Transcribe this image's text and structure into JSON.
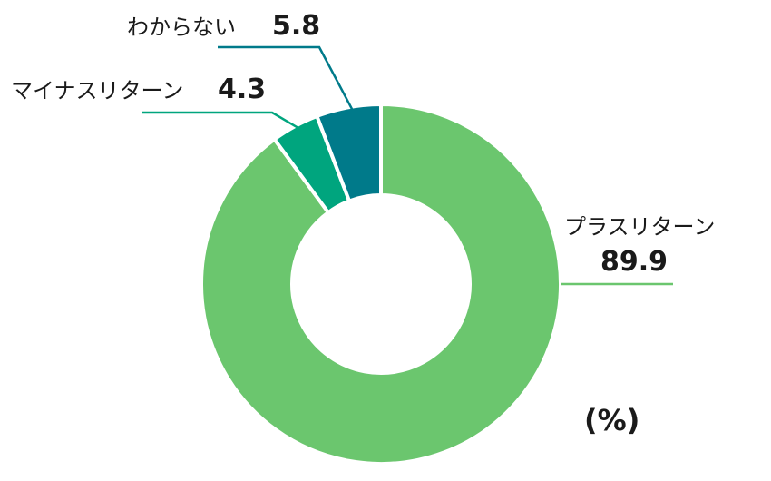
{
  "chart_data": {
    "type": "pie",
    "variant": "donut",
    "unit_label": "(%)",
    "slices": [
      {
        "label": "プラスリターン",
        "value": 89.9,
        "value_text": "89.9",
        "color": "#6BC66E"
      },
      {
        "label": "マイナスリターン",
        "value": 4.3,
        "value_text": "4.3",
        "color": "#00A57E"
      },
      {
        "label": "わからない",
        "value": 5.8,
        "value_text": "5.8",
        "color": "#007A8A"
      }
    ]
  }
}
